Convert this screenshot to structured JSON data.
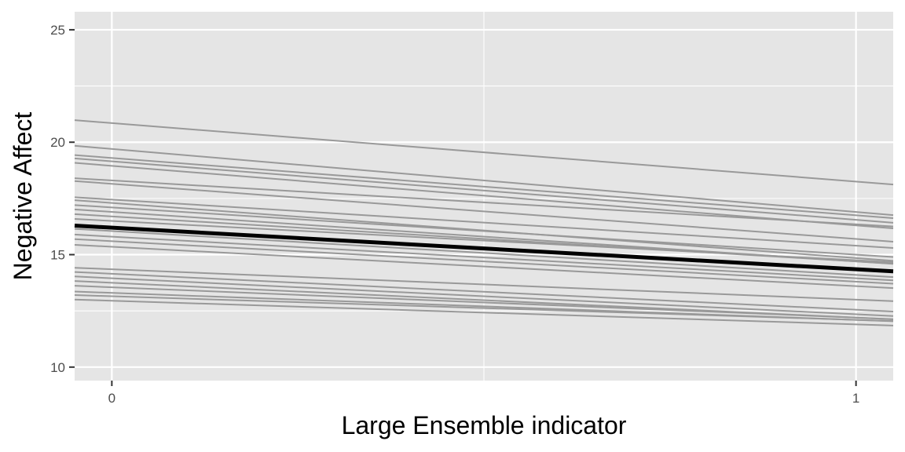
{
  "chart_data": {
    "type": "line",
    "title": "",
    "xlabel": "Large Ensemble indicator",
    "ylabel": "Negative Affect",
    "xlim": [
      -0.05,
      1.05
    ],
    "ylim": [
      9.4,
      25.8
    ],
    "x_ticks": [
      0,
      1
    ],
    "x_tick_labels": [
      "0",
      "1"
    ],
    "y_ticks": [
      10,
      15,
      20,
      25
    ],
    "y_tick_labels": [
      "10",
      "15",
      "20",
      "25"
    ],
    "grid": true,
    "legend": "none",
    "colors": {
      "panel_background": "#e5e5e5",
      "grid": "#ffffff",
      "subject_lines": "#999999",
      "average_line": "#000000"
    },
    "series": [
      {
        "intercept": 20.85,
        "slope": -2.6
      },
      {
        "intercept": 19.7,
        "slope": -2.8
      },
      {
        "intercept": 19.3,
        "slope": -2.55
      },
      {
        "intercept": 19.15,
        "slope": -2.6
      },
      {
        "intercept": 18.95,
        "slope": -2.65
      },
      {
        "intercept": 18.3,
        "slope": -1.95
      },
      {
        "intercept": 18.15,
        "slope": -2.45
      },
      {
        "intercept": 17.45,
        "slope": -2.05
      },
      {
        "intercept": 17.3,
        "slope": -2.45
      },
      {
        "intercept": 17.1,
        "slope": -2.1
      },
      {
        "intercept": 16.9,
        "slope": -2.2
      },
      {
        "intercept": 16.7,
        "slope": -2.0
      },
      {
        "intercept": 16.5,
        "slope": -1.75
      },
      {
        "intercept": 16.05,
        "slope": -1.95
      },
      {
        "intercept": 15.8,
        "slope": -1.85
      },
      {
        "intercept": 15.6,
        "slope": -1.8
      },
      {
        "intercept": 15.35,
        "slope": -1.75
      },
      {
        "intercept": 14.35,
        "slope": -1.35
      },
      {
        "intercept": 14.15,
        "slope": -1.6
      },
      {
        "intercept": 13.95,
        "slope": -1.6
      },
      {
        "intercept": 13.75,
        "slope": -1.55
      },
      {
        "intercept": 13.55,
        "slope": -1.35
      },
      {
        "intercept": 13.3,
        "slope": -1.2
      },
      {
        "intercept": 13.15,
        "slope": -1.05
      },
      {
        "intercept": 12.95,
        "slope": -1.05
      }
    ],
    "average": {
      "intercept": 16.2,
      "slope": -1.85
    }
  }
}
